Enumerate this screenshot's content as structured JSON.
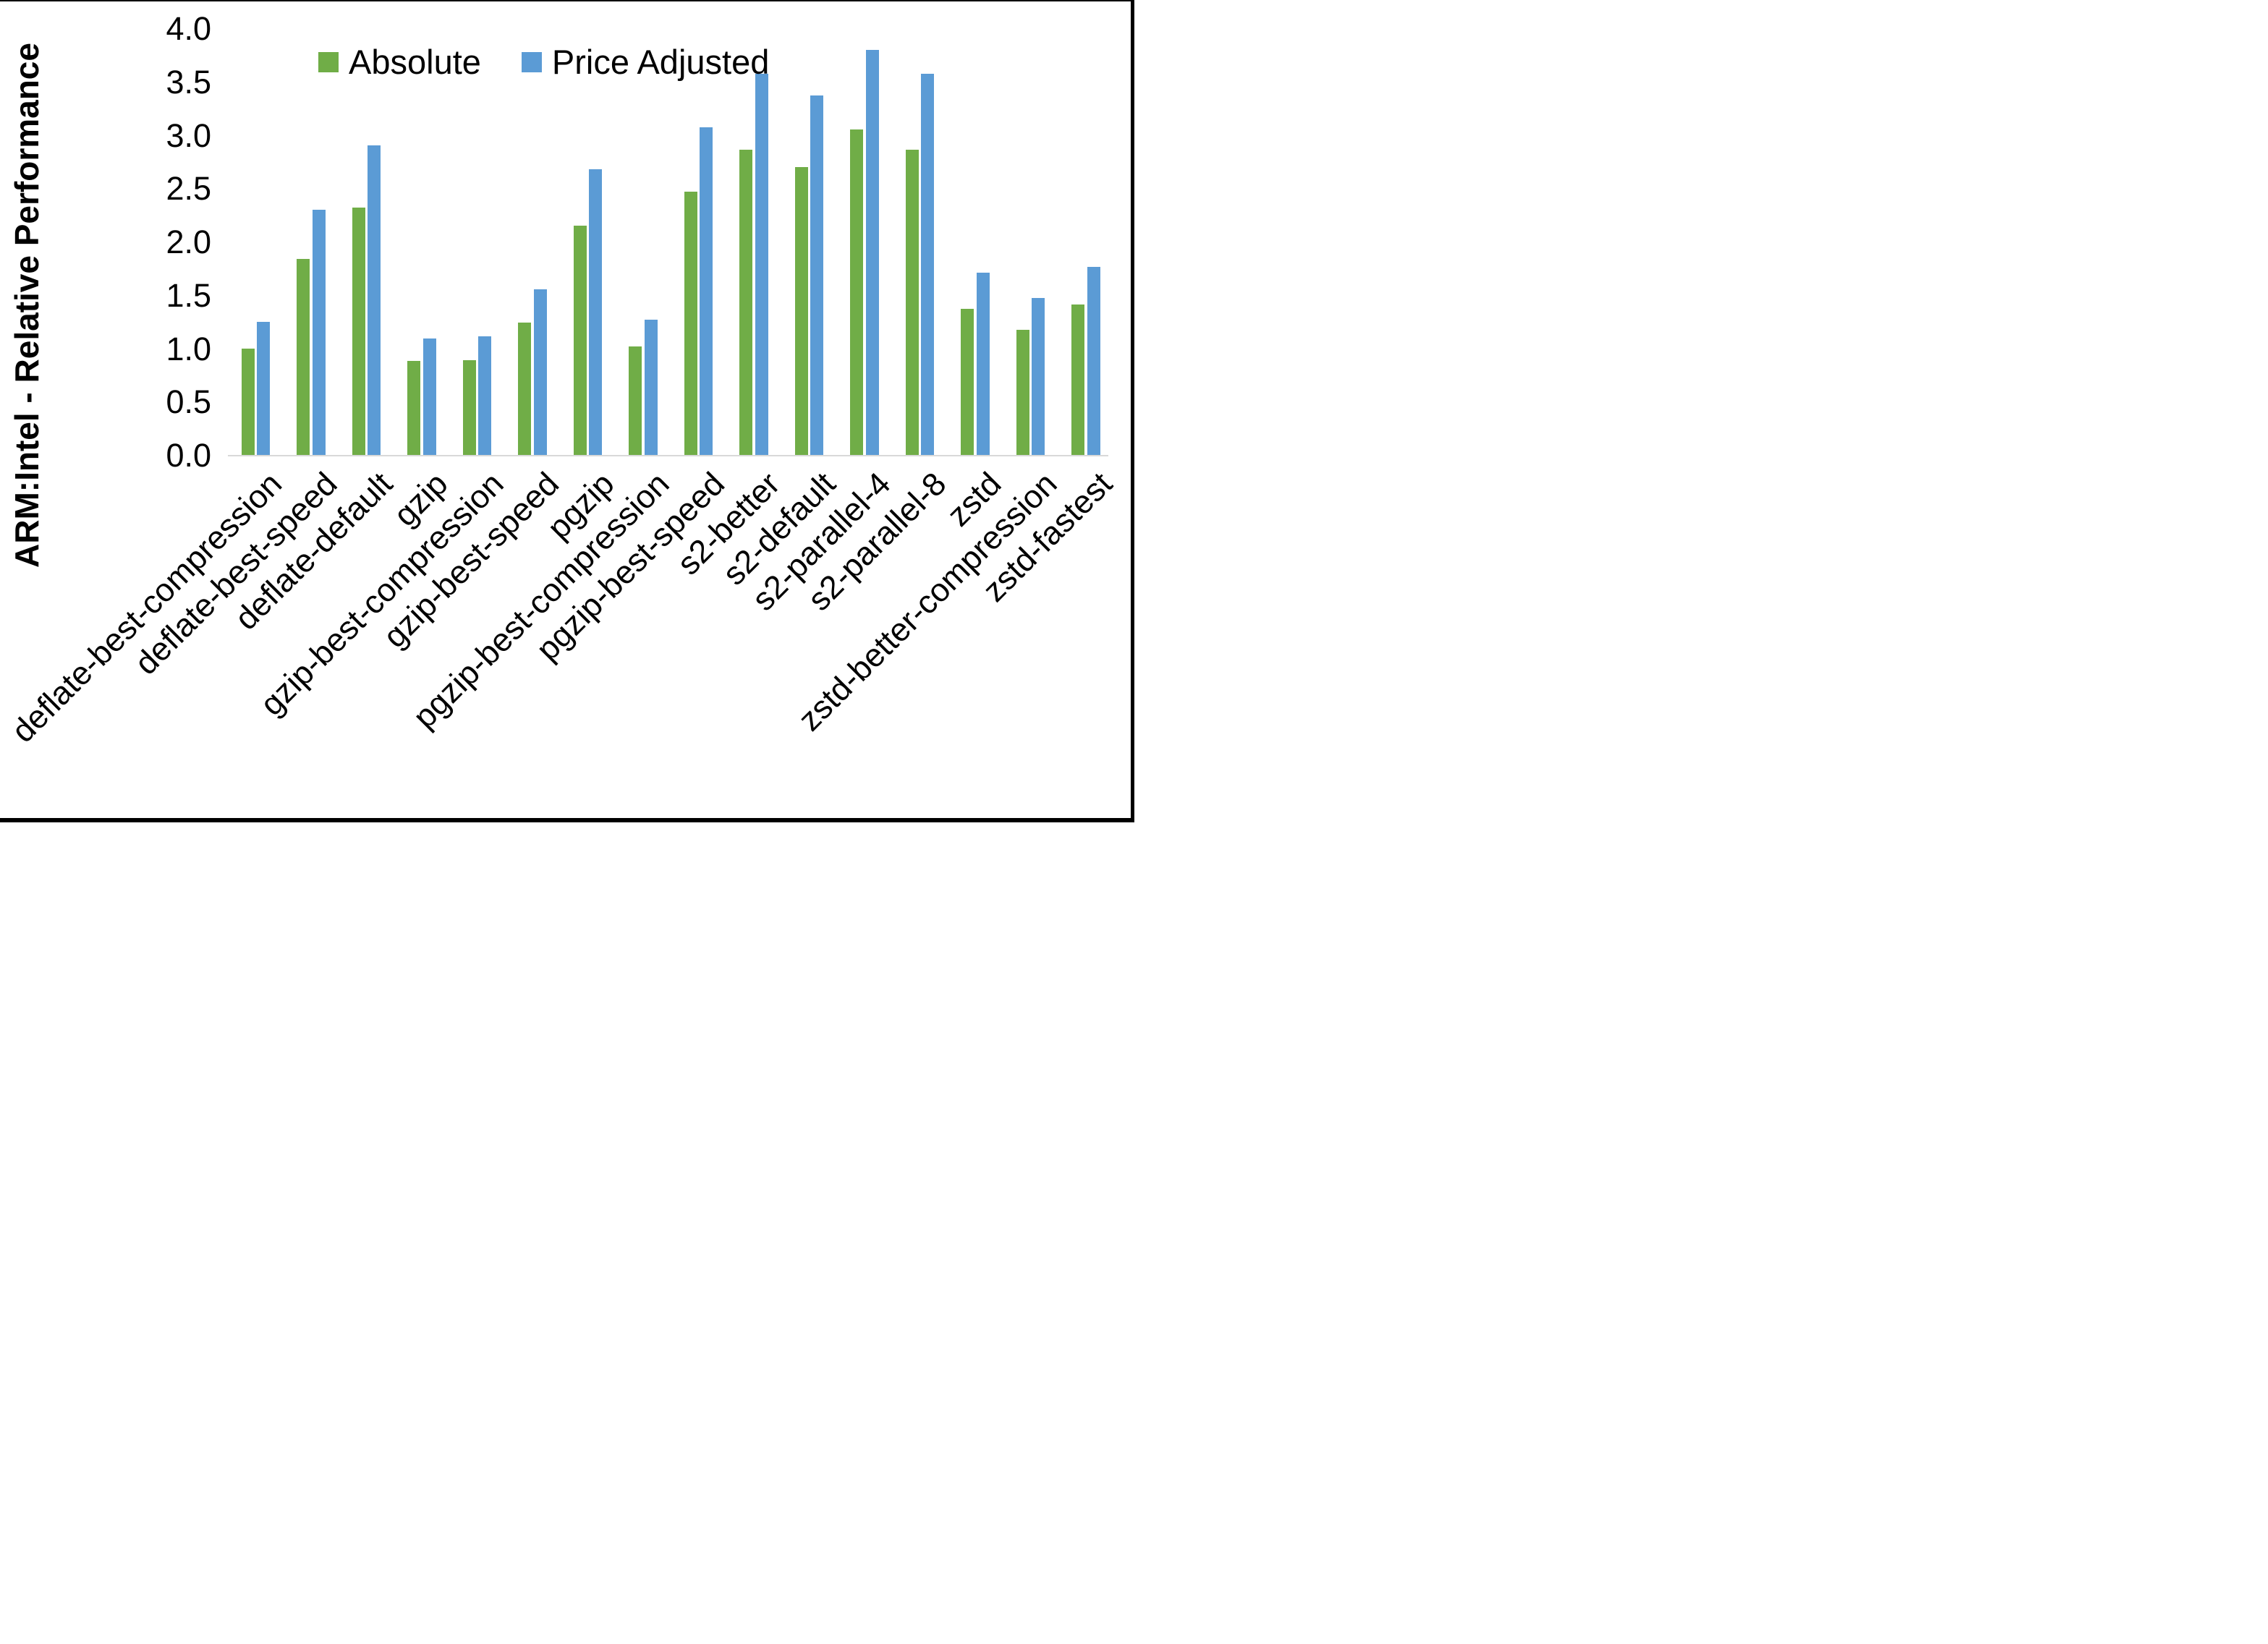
{
  "chart_data": {
    "type": "bar",
    "title": "",
    "ylabel": "ARM:Intel - Relative Performance",
    "xlabel": "",
    "ylim": [
      0.0,
      4.0
    ],
    "ytick_step": 0.5,
    "ytick_labels": [
      "0.0",
      "0.5",
      "1.0",
      "1.5",
      "2.0",
      "2.5",
      "3.0",
      "3.5",
      "4.0"
    ],
    "grid": false,
    "legend_position": "top-center",
    "categories": [
      "deflate-best-compression",
      "deflate-best-speed",
      "deflate-default",
      "gzip",
      "gzip-best-compression",
      "gzip-best-speed",
      "pgzip",
      "pgzip-best-compression",
      "pgzip-best-speed",
      "s2-better",
      "s2-default",
      "s2-parallel-4",
      "s2-parallel-8",
      "zstd",
      "zstd-better-compression",
      "zstd-fastest"
    ],
    "series": [
      {
        "name": "Absolute",
        "color": "#70AD47",
        "values": [
          1.0,
          1.84,
          2.32,
          0.88,
          0.89,
          1.24,
          2.15,
          1.02,
          2.47,
          2.86,
          2.7,
          3.05,
          2.86,
          1.37,
          1.17,
          1.41
        ]
      },
      {
        "name": "Price Adjusted",
        "color": "#5B9BD5",
        "values": [
          1.25,
          2.3,
          2.9,
          1.09,
          1.11,
          1.55,
          2.68,
          1.27,
          3.07,
          3.57,
          3.37,
          3.8,
          3.57,
          1.71,
          1.47,
          1.76
        ]
      }
    ]
  }
}
